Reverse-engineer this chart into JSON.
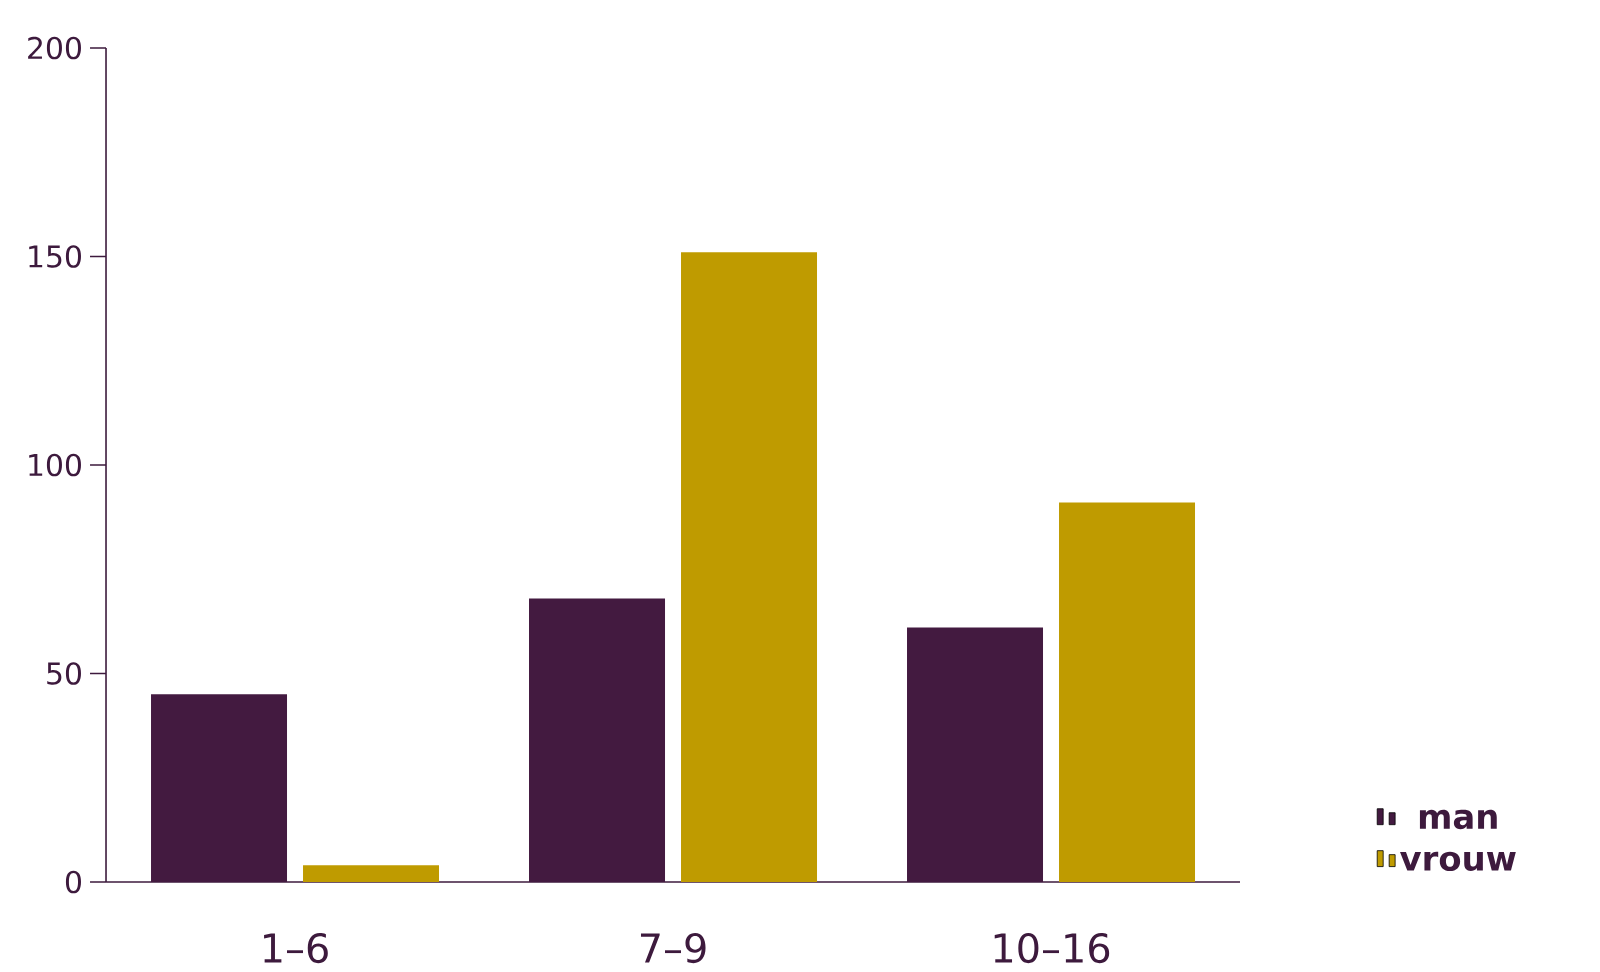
{
  "chart_data": {
    "type": "bar",
    "categories": [
      "1–6",
      "7–9",
      "10–16"
    ],
    "series": [
      {
        "name": "man",
        "color": "#431a40",
        "values": [
          45,
          68,
          61
        ]
      },
      {
        "name": "vrouw",
        "color": "#bf9b00",
        "values": [
          4,
          151,
          91
        ]
      }
    ],
    "ylim": [
      0,
      200
    ],
    "yticks": [
      0,
      50,
      100,
      150,
      200
    ],
    "grid": false,
    "legend": "bottom right"
  }
}
